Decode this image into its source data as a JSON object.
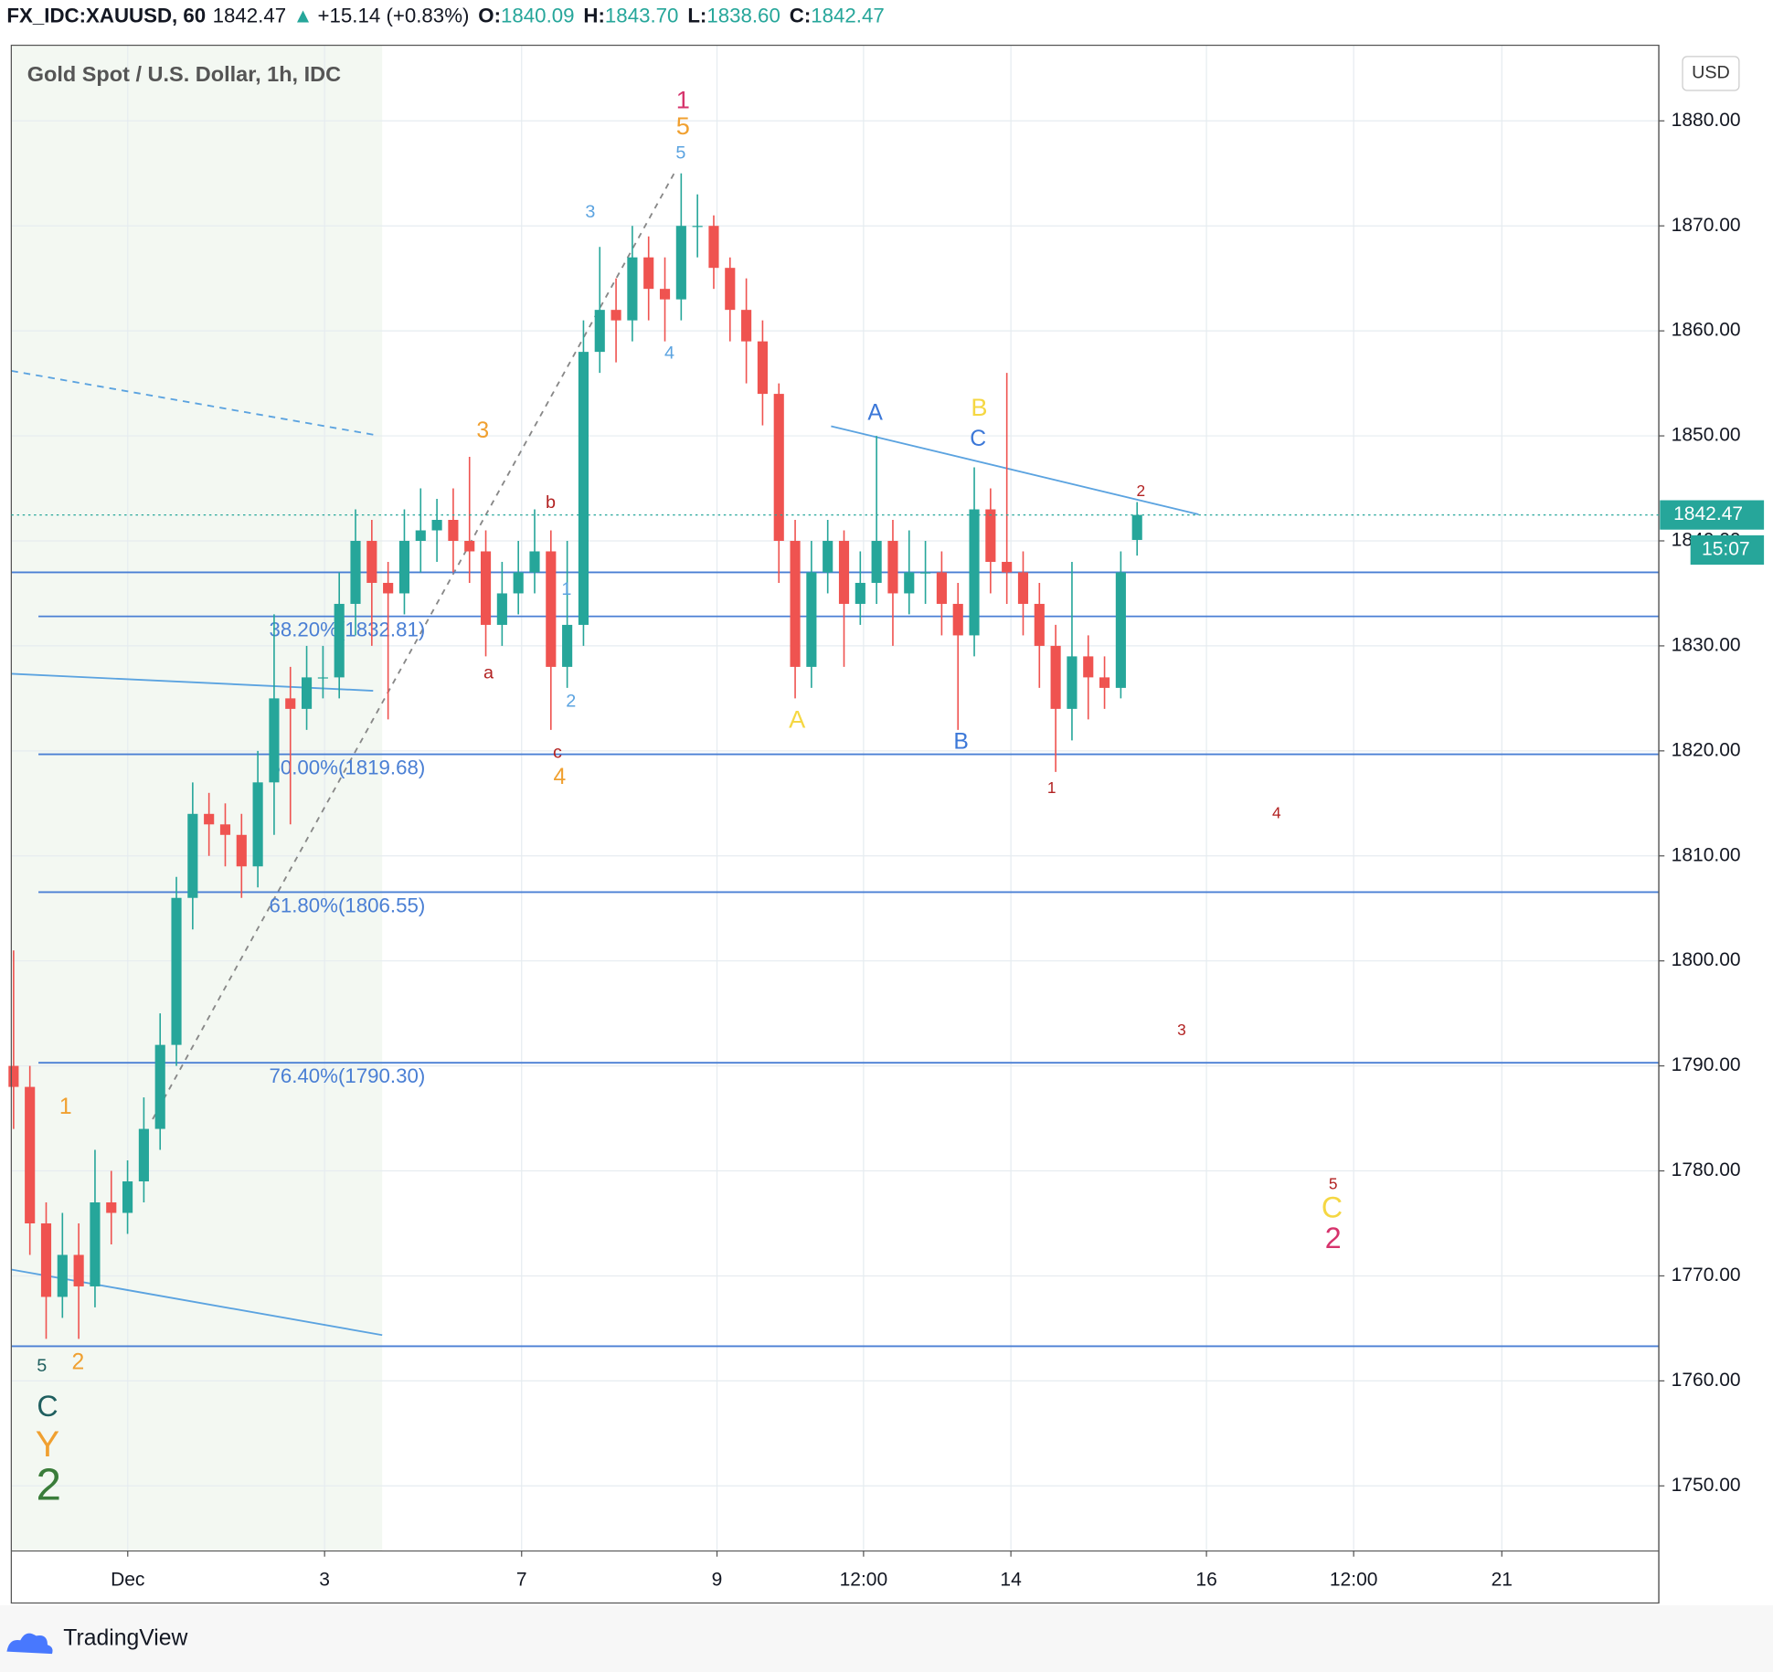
{
  "header": {
    "symbol": "FX_IDC:XAUUSD, 60",
    "last": "1842.47",
    "arrow": "▲",
    "change": "+15.14 (+0.83%)",
    "o_label": "O:",
    "o": "1840.09",
    "h_label": "H:",
    "h": "1843.70",
    "l_label": "L:",
    "l": "1838.60",
    "c_label": "C:",
    "c": "1842.47"
  },
  "legend_title": "Gold Spot / U.S. Dollar, 1h, IDC",
  "currency": "USD",
  "chart_data": {
    "type": "candlestick",
    "open": [
      1790,
      1788,
      1775,
      1768,
      1772,
      1769,
      1777,
      1776,
      1779,
      1784,
      1792,
      1806,
      1814,
      1813,
      1812,
      1809,
      1817,
      1825,
      1824,
      1827,
      1827,
      1834,
      1840,
      1836,
      1835,
      1840,
      1841,
      1842,
      1840,
      1839,
      1832,
      1835,
      1837,
      1839,
      1828,
      1832,
      1858,
      1862,
      1861,
      1867,
      1864,
      1863,
      1870,
      1870,
      1866,
      1862,
      1859,
      1854,
      1840,
      1828,
      1837,
      1840,
      1834,
      1836,
      1840,
      1835,
      1837,
      1837,
      1834,
      1831,
      1843,
      1838,
      1837,
      1834,
      1830,
      1824,
      1829,
      1827,
      1826,
      1840.09
    ],
    "high": [
      1801,
      1790,
      1777,
      1776,
      1775,
      1782,
      1780,
      1781,
      1787,
      1795,
      1808,
      1817,
      1816,
      1815,
      1814,
      1820,
      1833,
      1828,
      1830,
      1830,
      1837,
      1843,
      1842,
      1838,
      1843,
      1845,
      1844,
      1845,
      1848,
      1841,
      1838,
      1840,
      1843,
      1841,
      1840,
      1861,
      1868,
      1865,
      1870,
      1869,
      1867,
      1875,
      1873,
      1871,
      1867,
      1865,
      1861,
      1855,
      1842,
      1840,
      1842,
      1841,
      1839,
      1850,
      1842,
      1841,
      1840,
      1839,
      1836,
      1847,
      1845,
      1856,
      1839,
      1836,
      1832,
      1838,
      1831,
      1829,
      1839,
      1843.7
    ],
    "low": [
      1784,
      1772,
      1764,
      1766,
      1764,
      1767,
      1773,
      1774,
      1777,
      1782,
      1790,
      1803,
      1810,
      1809,
      1806,
      1807,
      1812,
      1813,
      1822,
      1825,
      1825,
      1831,
      1830,
      1823,
      1833,
      1837,
      1838,
      1837,
      1836,
      1829,
      1830,
      1833,
      1835,
      1822,
      1826,
      1830,
      1856,
      1857,
      1859,
      1861,
      1859,
      1861,
      1867,
      1864,
      1859,
      1855,
      1851,
      1836,
      1825,
      1826,
      1835,
      1828,
      1832,
      1834,
      1830,
      1833,
      1834,
      1831,
      1822,
      1829,
      1835,
      1834,
      1831,
      1826,
      1818,
      1821,
      1823,
      1824,
      1825,
      1838.6
    ],
    "close": [
      1788,
      1775,
      1768,
      1772,
      1769,
      1777,
      1776,
      1779,
      1784,
      1792,
      1806,
      1814,
      1813,
      1812,
      1809,
      1817,
      1825,
      1824,
      1827,
      1827,
      1834,
      1840,
      1836,
      1835,
      1840,
      1841,
      1842,
      1840,
      1839,
      1832,
      1835,
      1837,
      1839,
      1828,
      1832,
      1858,
      1862,
      1861,
      1867,
      1864,
      1863,
      1870,
      1870,
      1866,
      1862,
      1859,
      1854,
      1840,
      1828,
      1837,
      1840,
      1834,
      1836,
      1840,
      1835,
      1837,
      1837,
      1834,
      1831,
      1843,
      1838,
      1837,
      1834,
      1830,
      1824,
      1829,
      1827,
      1826,
      1837,
      1842.47
    ],
    "up_color": "#26a69a",
    "down_color": "#ef5350",
    "xlim": [
      -0.14,
      101.04
    ],
    "xticks": [
      {
        "value": 7.01,
        "label": "Dec"
      },
      {
        "value": 19.1,
        "label": "3"
      },
      {
        "value": 31.2,
        "label": "7"
      },
      {
        "value": 43.2,
        "label": "9"
      },
      {
        "value": 52.2,
        "label": "12:00"
      },
      {
        "value": 61.25,
        "label": "14"
      },
      {
        "value": 73.26,
        "label": "16"
      },
      {
        "value": 82.3,
        "label": "12:00"
      },
      {
        "value": 91.4,
        "label": "21"
      }
    ],
    "ylim": [
      1743.8,
      1887.2
    ],
    "yticks": [
      {
        "value": 1750,
        "label": "1750.00"
      },
      {
        "value": 1760,
        "label": "1760.00"
      },
      {
        "value": 1770,
        "label": "1770.00"
      },
      {
        "value": 1780,
        "label": "1780.00"
      },
      {
        "value": 1790,
        "label": "1790.00"
      },
      {
        "value": 1800,
        "label": "1800.00"
      },
      {
        "value": 1810,
        "label": "1810.00"
      },
      {
        "value": 1820,
        "label": "1820.00"
      },
      {
        "value": 1830,
        "label": "1830.00"
      },
      {
        "value": 1840,
        "label": "1840.00"
      },
      {
        "value": 1850,
        "label": "1850.00"
      },
      {
        "value": 1860,
        "label": "1860.00"
      },
      {
        "value": 1870,
        "label": "1870.00"
      },
      {
        "value": 1880,
        "label": "1880.00"
      }
    ],
    "grid": true,
    "fib_levels": [
      {
        "value": 1832.81,
        "label": "38.20%(1832.81)"
      },
      {
        "value": 1819.68,
        "label": "50.00%(1819.68)"
      },
      {
        "value": 1806.55,
        "label": "61.80%(1806.55)"
      },
      {
        "value": 1790.3,
        "label": "76.40%(1790.30)"
      }
    ],
    "fib_color": "#4a7fd4",
    "horizontal_lines": [
      1837,
      1763.3
    ],
    "price_tag": {
      "value": 1842.47,
      "label": "1842.47"
    },
    "countdown": "15:07",
    "annotations": [
      {
        "text": "1",
        "color": "#d6336c"
      },
      {
        "text": "5",
        "color": "#f0a030"
      },
      {
        "text": "5",
        "color": "#5ba3e0"
      },
      {
        "text": "3",
        "color": "#5ba3e0"
      },
      {
        "text": "4",
        "color": "#5ba3e0"
      },
      {
        "text": "3",
        "color": "#f0a030"
      },
      {
        "text": "b",
        "color": "#b22222"
      },
      {
        "text": "a",
        "color": "#b22222"
      },
      {
        "text": "1",
        "color": "#5ba3e0"
      },
      {
        "text": "2",
        "color": "#5ba3e0"
      },
      {
        "text": "c",
        "color": "#b22222"
      },
      {
        "text": "4",
        "color": "#f0a030"
      },
      {
        "text": "A",
        "color": "#3c78d8"
      },
      {
        "text": "B",
        "color": "#f5d742"
      },
      {
        "text": "C",
        "color": "#3c78d8"
      },
      {
        "text": "A",
        "color": "#f5d742"
      },
      {
        "text": "B",
        "color": "#3c78d8"
      },
      {
        "text": "2",
        "color": "#b22222"
      },
      {
        "text": "1",
        "color": "#b22222"
      },
      {
        "text": "4",
        "color": "#b22222"
      },
      {
        "text": "3",
        "color": "#b22222"
      },
      {
        "text": "5",
        "color": "#b22222"
      },
      {
        "text": "C",
        "color": "#f5d742"
      },
      {
        "text": "2",
        "color": "#d6336c"
      },
      {
        "text": "1",
        "color": "#f0a030"
      },
      {
        "text": "5",
        "color": "#1f5f5f"
      },
      {
        "text": "2",
        "color": "#f0a030"
      },
      {
        "text": "C",
        "color": "#1f5f5f"
      },
      {
        "text": "Y",
        "color": "#f0a030"
      },
      {
        "text": "2",
        "color": "#3a7d3a"
      }
    ]
  },
  "footer": {
    "brand": "TradingView"
  }
}
